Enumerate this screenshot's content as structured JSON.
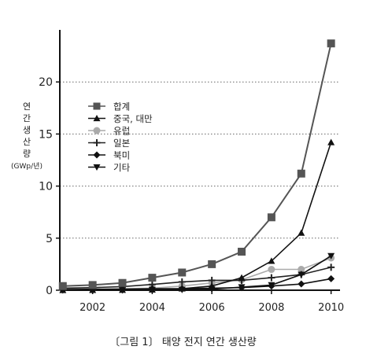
{
  "chart_data": {
    "type": "line",
    "x": [
      2001,
      2002,
      2003,
      2004,
      2005,
      2006,
      2007,
      2008,
      2009,
      2010
    ],
    "xticks": [
      2002,
      2004,
      2006,
      2008,
      2010
    ],
    "xlim": [
      2000.9,
      2010.3
    ],
    "ylim": [
      0,
      25
    ],
    "yticks": [
      0,
      5,
      10,
      15,
      20
    ],
    "ylabel": "연간생산량",
    "yunit": "(GWp/년)",
    "grid": "horizontal dotted",
    "legend_position": "upper-left",
    "caption": "〔그림 1〕 태양 전지 연간 생산량",
    "series": [
      {
        "name": "합계",
        "marker": "square",
        "color": "#555555",
        "values": [
          0.4,
          0.5,
          0.7,
          1.2,
          1.7,
          2.5,
          3.7,
          7.0,
          11.2,
          23.7
        ]
      },
      {
        "name": "중국, 대만",
        "marker": "triangle-up",
        "color": "#111111",
        "values": [
          0.0,
          0.01,
          0.02,
          0.05,
          0.15,
          0.4,
          1.2,
          2.8,
          5.5,
          14.2
        ]
      },
      {
        "name": "유럽",
        "marker": "circle",
        "color": "#aaaaaa",
        "values": [
          0.1,
          0.1,
          0.15,
          0.2,
          0.4,
          0.7,
          1.0,
          2.0,
          2.0,
          3.1
        ]
      },
      {
        "name": "일본",
        "marker": "plus",
        "color": "#222222",
        "values": [
          0.2,
          0.25,
          0.35,
          0.55,
          0.8,
          0.95,
          0.95,
          1.2,
          1.5,
          2.2
        ]
      },
      {
        "name": "북미",
        "marker": "diamond",
        "color": "#111111",
        "values": [
          0.05,
          0.1,
          0.1,
          0.15,
          0.15,
          0.2,
          0.25,
          0.4,
          0.6,
          1.1
        ]
      },
      {
        "name": "기타",
        "marker": "triangle-down",
        "color": "#111111",
        "values": [
          0.0,
          0.0,
          0.0,
          0.05,
          0.05,
          0.1,
          0.3,
          0.5,
          1.5,
          3.3
        ]
      }
    ]
  }
}
